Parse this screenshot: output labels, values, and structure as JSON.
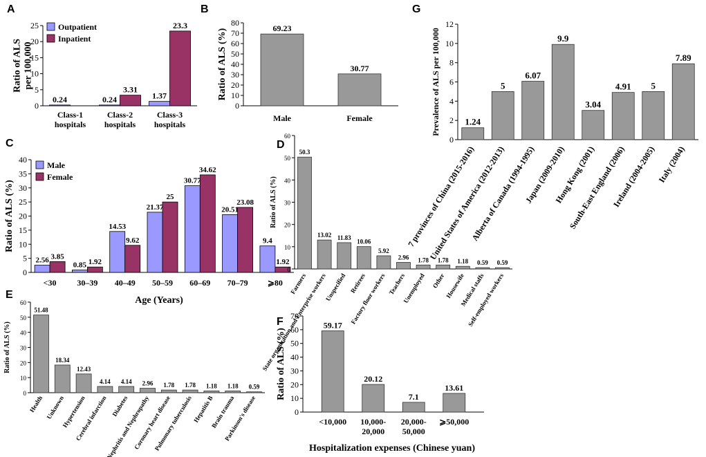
{
  "colors": {
    "gray": "#999999",
    "male": "#9999ff",
    "female": "#993366",
    "male_text": "#5a5aa0",
    "female_text": "#7a1f5c"
  },
  "chart_data": [
    {
      "panel": "A",
      "type": "bar",
      "ylabel": "Ratio of ALS per 100,000",
      "ylim": [
        0,
        25
      ],
      "yticks": [
        0,
        5,
        10,
        15,
        20,
        25
      ],
      "categories": [
        [
          "Class-1",
          "hospitals"
        ],
        [
          "Class-2",
          "hospitals"
        ],
        [
          "Class-3",
          "hospitals"
        ]
      ],
      "series": [
        {
          "name": "Outpatient",
          "values": [
            0.24,
            0.24,
            1.37
          ],
          "labels": [
            "0.24",
            "0.24",
            "1.37"
          ]
        },
        {
          "name": "Inpatient",
          "values": [
            0,
            3.31,
            23.3
          ],
          "labels": [
            "",
            "3.31",
            "23.3"
          ]
        }
      ]
    },
    {
      "panel": "B",
      "type": "bar",
      "ylabel": "Ratio of ALS (%)",
      "ylim": [
        0,
        80
      ],
      "yticks": [
        0,
        10,
        20,
        30,
        40,
        50,
        60,
        70,
        80
      ],
      "categories": [
        "Male",
        "Female"
      ],
      "values": [
        69.23,
        30.77
      ],
      "labels": [
        "69.23",
        "30.77"
      ]
    },
    {
      "panel": "C",
      "type": "bar",
      "ylabel": "Ratio of ALS (%)",
      "xlabel": "Age (Years)",
      "ylim": [
        0,
        40
      ],
      "yticks": [
        0,
        5,
        10,
        15,
        20,
        25,
        30,
        35,
        40
      ],
      "categories": [
        "<30",
        "30–39",
        "40–49",
        "50–59",
        "60–69",
        "70–79",
        "⩾80"
      ],
      "series": [
        {
          "name": "Male",
          "values": [
            2.56,
            0.85,
            14.53,
            21.37,
            30.77,
            20.51,
            9.4
          ],
          "labels": [
            "2.56",
            "0.85",
            "14.53",
            "21.37",
            "30.77",
            "20.51",
            "9.4"
          ]
        },
        {
          "name": "Female",
          "values": [
            3.85,
            1.92,
            9.62,
            25,
            34.62,
            23.08,
            1.92
          ],
          "labels": [
            "3.85",
            "1.92",
            "9.62",
            "25",
            "34.62",
            "23.08",
            "1.92"
          ]
        }
      ]
    },
    {
      "panel": "D",
      "type": "bar",
      "ylabel": "Ratio of ALS (%)",
      "ylim": [
        0,
        60
      ],
      "yticks": [
        0,
        10,
        20,
        30,
        40,
        50,
        60
      ],
      "categories": [
        "Farmers",
        "State organization and Enterprise workers",
        "Unspecified",
        "Retirees",
        "Factory floor workers",
        "Teachers",
        "Unemployed",
        "Other",
        "Housewife",
        "Medical staffs",
        "Self-employed workers"
      ],
      "values": [
        50.3,
        13.02,
        11.83,
        10.06,
        5.92,
        2.96,
        1.78,
        1.78,
        1.18,
        0.59,
        0.59
      ],
      "labels": [
        "50.3",
        "13.02",
        "11.83",
        "10.06",
        "5.92",
        "2.96",
        "1.78",
        "1.78",
        "1.18",
        "0.59",
        "0.59"
      ]
    },
    {
      "panel": "E",
      "type": "bar",
      "ylabel": "Ratio of ALS (%)",
      "ylim": [
        0,
        60
      ],
      "yticks": [
        0,
        10,
        20,
        30,
        40,
        50,
        60
      ],
      "categories": [
        "Health",
        "Unknown",
        "Hypertension",
        "Cerebral infarction",
        "Diabetes",
        "Nephritis and Nephropathy",
        "Coronary heart disease",
        "Pulmonary tuberculosis",
        "Hepatitis B",
        "Brain trauma",
        "Parkinson's disease"
      ],
      "values": [
        51.48,
        18.34,
        12.43,
        4.14,
        4.14,
        2.96,
        1.78,
        1.78,
        1.18,
        1.18,
        0.59
      ],
      "labels": [
        "51.48",
        "18.34",
        "12.43",
        "4.14",
        "4.14",
        "2.96",
        "1.78",
        "1.78",
        "1.18",
        "1.18",
        "0.59"
      ]
    },
    {
      "panel": "F",
      "type": "bar",
      "ylabel": "Ratio of ALS (%)",
      "xlabel": "Hospitalization expenses (Chinese yuan)",
      "ylim": [
        0,
        70
      ],
      "yticks": [
        0,
        10,
        20,
        30,
        40,
        50,
        60,
        70
      ],
      "categories": [
        [
          "<10,000"
        ],
        [
          "10,000-",
          "20,000"
        ],
        [
          "20,000-",
          "50,000"
        ],
        [
          "⩾50,000"
        ]
      ],
      "values": [
        59.17,
        20.12,
        7.1,
        13.61
      ],
      "labels": [
        "59.17",
        "20.12",
        "7.1",
        "13.61"
      ]
    },
    {
      "panel": "G",
      "type": "bar",
      "ylabel": "Prevalence of ALS per 100,000",
      "ylim": [
        0,
        12
      ],
      "yticks": [
        0,
        2,
        4,
        6,
        8,
        10,
        12
      ],
      "categories": [
        "7 provinces of China (2015-2016)",
        "United States of America (2012-2013)",
        "Alberta of Canada (1994-1995)",
        "Japan (2009-2010)",
        "Hong Kong (2001)",
        "South-East England (2006)",
        "Ireland (2004-2005)",
        "Italy (2004)"
      ],
      "values": [
        1.24,
        5,
        6.07,
        9.9,
        3.04,
        4.91,
        5,
        7.89
      ],
      "labels": [
        "1.24",
        "5",
        "6.07",
        "9.9",
        "3.04",
        "4.91",
        "5",
        "7.89"
      ]
    }
  ]
}
